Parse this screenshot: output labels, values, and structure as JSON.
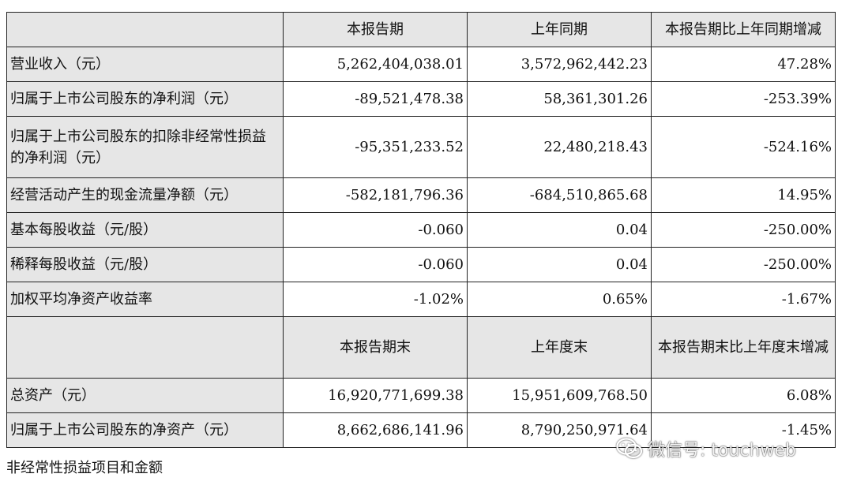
{
  "table": {
    "header1": {
      "col1": "本报告期",
      "col2": "上年同期",
      "col3": "本报告期比上年同期增减"
    },
    "rows1": [
      {
        "label": "营业收入（元）",
        "current": "5,262,404,038.01",
        "previous": "3,572,962,442.23",
        "change": "47.28%"
      },
      {
        "label": "归属于上市公司股东的净利润（元）",
        "current": "-89,521,478.38",
        "previous": "58,361,301.26",
        "change": "-253.39%"
      },
      {
        "label": "归属于上市公司股东的扣除非经常性损益的净利润（元）",
        "current": "-95,351,233.52",
        "previous": "22,480,218.43",
        "change": "-524.16%"
      },
      {
        "label": "经营活动产生的现金流量净额（元）",
        "current": "-582,181,796.36",
        "previous": "-684,510,865.68",
        "change": "14.95%"
      },
      {
        "label": "基本每股收益（元/股）",
        "current": "-0.060",
        "previous": "0.04",
        "change": "-250.00%"
      },
      {
        "label": "稀释每股收益（元/股）",
        "current": "-0.060",
        "previous": "0.04",
        "change": "-250.00%"
      },
      {
        "label": "加权平均净资产收益率",
        "current": "-1.02%",
        "previous": "0.65%",
        "change": "-1.67%"
      }
    ],
    "header2": {
      "col1": "本报告期末",
      "col2": "上年度末",
      "col3": "本报告期末比上年度末增减"
    },
    "rows2": [
      {
        "label": "总资产（元）",
        "current": "16,920,771,699.38",
        "previous": "15,951,609,768.50",
        "change": "6.08%"
      },
      {
        "label": "归属于上市公司股东的净资产（元）",
        "current": "8,662,686,141.96",
        "previous": "8,790,250,971.64",
        "change": "-1.45%"
      }
    ]
  },
  "footer_text": "非经常性损益项目和金额",
  "watermark": {
    "text": "微信号: touchweb",
    "icon": "wechat-icon"
  }
}
